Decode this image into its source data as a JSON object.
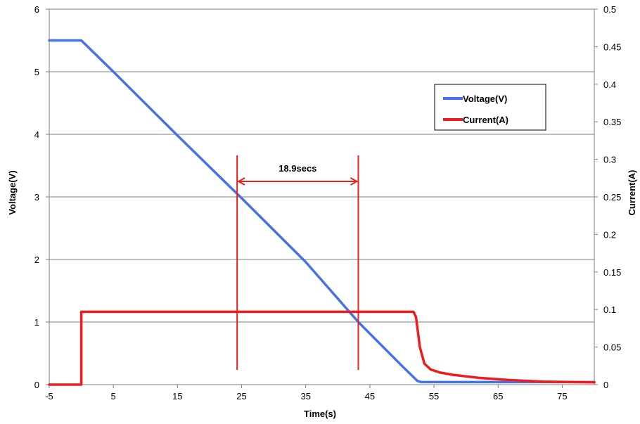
{
  "chart_data": {
    "type": "line",
    "xlabel": "Time(s)",
    "ylabel": "Voltage(V)",
    "y2label": "Current(A)",
    "xlim": [
      -5,
      80
    ],
    "ylim": [
      0,
      6
    ],
    "y2lim": [
      0,
      0.5
    ],
    "xticks": [
      -5,
      5,
      15,
      25,
      35,
      45,
      55,
      65,
      75
    ],
    "yticks": [
      0,
      1,
      2,
      3,
      4,
      5,
      6
    ],
    "y2ticks": [
      0,
      0.05,
      0.1,
      0.15,
      0.2,
      0.25,
      0.3,
      0.35,
      0.4,
      0.45,
      0.5
    ],
    "grid": "horizontal",
    "legend_position": "upper-right",
    "series": [
      {
        "name": "Voltage(V)",
        "axis": "left",
        "color": "#4472e8",
        "x": [
          -5,
          0,
          0.5,
          5,
          15,
          25,
          35,
          43.2,
          50,
          51.8,
          52.4,
          53.0,
          55,
          65,
          75,
          80
        ],
        "y": [
          5.5,
          5.5,
          5.45,
          5.0,
          3.98,
          2.98,
          1.96,
          1.0,
          0.3,
          0.12,
          0.06,
          0.04,
          0.04,
          0.04,
          0.04,
          0.04
        ]
      },
      {
        "name": "Current(A)",
        "axis": "right",
        "color": "#ee1c1c",
        "x": [
          -5,
          0,
          0,
          10,
          20,
          30,
          40,
          50,
          51.8,
          52.2,
          52.8,
          53.5,
          54.5,
          56,
          58,
          62,
          67,
          72,
          80
        ],
        "y": [
          0,
          0,
          0.097,
          0.097,
          0.097,
          0.097,
          0.097,
          0.097,
          0.097,
          0.09,
          0.05,
          0.028,
          0.02,
          0.016,
          0.013,
          0.009,
          0.006,
          0.004,
          0.003
        ]
      }
    ],
    "annotations": [
      {
        "text": "18.9secs",
        "from_x": 24.3,
        "to_x": 43.2
      }
    ]
  }
}
